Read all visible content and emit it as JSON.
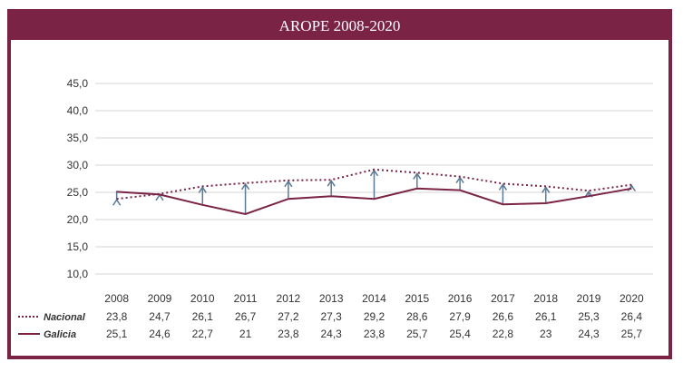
{
  "chart_data": {
    "type": "line",
    "title": "AROPE 2008-2020",
    "categories": [
      "2008",
      "2009",
      "2010",
      "2011",
      "2012",
      "2013",
      "2014",
      "2015",
      "2016",
      "2017",
      "2018",
      "2019",
      "2020"
    ],
    "yticks": [
      "45,0",
      "40,0",
      "35,0",
      "30,0",
      "25,0",
      "20,0",
      "15,0",
      "10,0"
    ],
    "ylim": [
      10,
      45
    ],
    "grid": true,
    "series": [
      {
        "name": "Nacional",
        "style": "dotted",
        "color": "#7b2345",
        "values": [
          23.8,
          24.7,
          26.1,
          26.7,
          27.2,
          27.3,
          29.2,
          28.6,
          27.9,
          26.6,
          26.1,
          25.3,
          26.4
        ],
        "labels": [
          "23,8",
          "24,7",
          "26,1",
          "26,7",
          "27,2",
          "27,3",
          "29,2",
          "28,6",
          "27,9",
          "26,6",
          "26,1",
          "25,3",
          "26,4"
        ]
      },
      {
        "name": "Galicia",
        "style": "solid",
        "color": "#7b2345",
        "values": [
          25.1,
          24.6,
          22.7,
          21,
          23.8,
          24.3,
          23.8,
          25.7,
          25.4,
          22.8,
          23,
          24.3,
          25.7
        ],
        "labels": [
          "25,1",
          "24,6",
          "22,7",
          "21",
          "23,8",
          "24,3",
          "23,8",
          "25,7",
          "25,4",
          "22,8",
          "23",
          "24,3",
          "25,7"
        ]
      }
    ],
    "arrow_color": "#5b7a93"
  }
}
